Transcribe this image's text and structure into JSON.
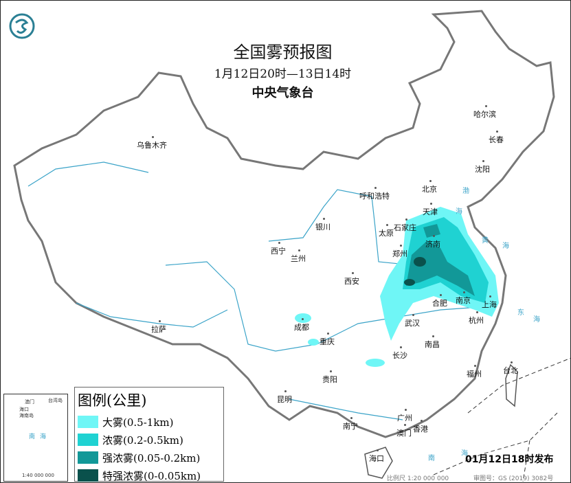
{
  "header": {
    "title": "全国雾预报图",
    "period": "1月12日20时—13日14时",
    "issuer": "中央气象台",
    "logo": "cma-logo"
  },
  "legend": {
    "title": "图例(公里)",
    "items": [
      {
        "label": "大雾(0.5-1km)",
        "color": "#6ff6f6"
      },
      {
        "label": "浓雾(0.2-0.5km)",
        "color": "#1fd2d2"
      },
      {
        "label": "强浓雾(0.05-0.2km)",
        "color": "#129898"
      },
      {
        "label": "特强浓雾(0-0.05km)",
        "color": "#0a514c"
      }
    ]
  },
  "cities": [
    "乌鲁木齐",
    "哈尔滨",
    "长春",
    "沈阳",
    "北京",
    "天津",
    "呼和浩特",
    "石家庄",
    "太原",
    "济南",
    "银川",
    "西宁",
    "兰州",
    "郑州",
    "西安",
    "南京",
    "合肥",
    "上海",
    "杭州",
    "武汉",
    "成都",
    "重庆",
    "拉萨",
    "长沙",
    "南昌",
    "贵阳",
    "福州",
    "台北",
    "昆明",
    "南宁",
    "广州",
    "香港",
    "澳门",
    "海口"
  ],
  "seas": [
    "渤",
    "海",
    "黄",
    "海",
    "东",
    "海",
    "南",
    "海"
  ],
  "inset": {
    "labels": [
      "澳门",
      "台湾岛",
      "海口",
      "海南岛",
      "南",
      "海"
    ],
    "scale": "1:40 000 000"
  },
  "footer": {
    "issued": "01月12日18时发布",
    "scale": "比例尺 1:20 000 000",
    "approval": "审图号：GS (2019) 3082号"
  }
}
